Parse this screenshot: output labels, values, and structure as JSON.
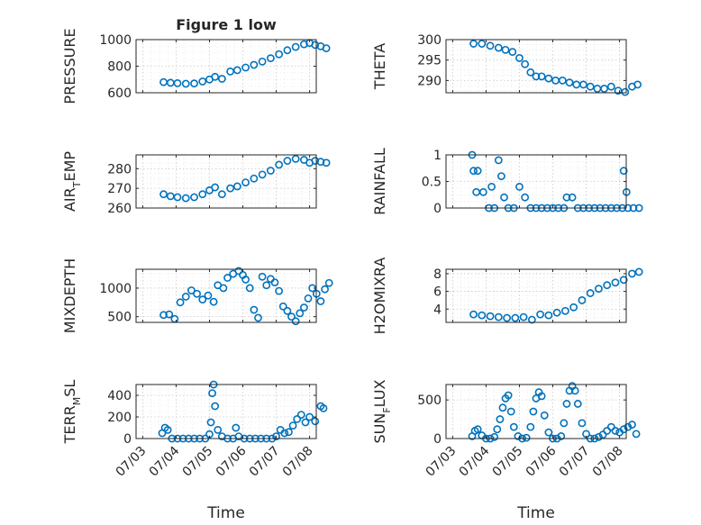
{
  "figure": {
    "title": "Figure 1 low",
    "xlabel": "Time"
  },
  "colors": {
    "marker": "#0072bd",
    "axis": "#262626",
    "grid": "#c9c9c9"
  },
  "chart_data": [
    {
      "id": "pressure",
      "type": "scatter",
      "title": "Figure 1 low",
      "ylabel": "PRESSURE",
      "ylabel_sub": "",
      "ylabel_tail": "",
      "xlabel": "",
      "xlim": [
        "07/03",
        "07/08"
      ],
      "ylim": [
        600,
        1000
      ],
      "yticks": [
        600,
        800,
        1000
      ],
      "xticks": [],
      "grid": true,
      "x": [
        "07/03 15:00",
        "07/03 20:00",
        "07/04 01:00",
        "07/04 07:00",
        "07/04 13:00",
        "07/04 19:00",
        "07/05 00:00",
        "07/05 04:00",
        "07/05 09:00",
        "07/05 15:00",
        "07/05 20:00",
        "07/06 02:00",
        "07/06 08:00",
        "07/06 14:00",
        "07/06 20:00",
        "07/07 02:00",
        "07/07 08:00",
        "07/07 14:00",
        "07/07 20:00",
        "07/08 00:00",
        "07/08 04:00",
        "07/08 08:00",
        "07/08 12:00"
      ],
      "y": [
        680,
        675,
        672,
        668,
        670,
        685,
        700,
        720,
        705,
        760,
        770,
        790,
        810,
        835,
        860,
        890,
        920,
        945,
        965,
        975,
        960,
        950,
        935
      ]
    },
    {
      "id": "theta",
      "type": "scatter",
      "title": "",
      "ylabel": "THETA",
      "ylabel_sub": "",
      "ylabel_tail": "",
      "xlabel": "",
      "xlim": [
        "07/03",
        "07/08"
      ],
      "ylim": [
        287,
        300
      ],
      "yticks": [
        290,
        295,
        300
      ],
      "xticks": [],
      "grid": true,
      "x": [
        "07/03 15:00",
        "07/03 21:00",
        "07/04 03:00",
        "07/04 09:00",
        "07/04 14:00",
        "07/04 19:00",
        "07/05 00:00",
        "07/05 04:00",
        "07/05 08:00",
        "07/05 12:00",
        "07/05 16:00",
        "07/05 21:00",
        "07/06 02:00",
        "07/06 07:00",
        "07/06 12:00",
        "07/06 17:00",
        "07/06 22:00",
        "07/07 03:00",
        "07/07 08:00",
        "07/07 13:00",
        "07/07 18:00",
        "07/07 23:00",
        "07/08 04:00",
        "07/08 09:00",
        "07/08 13:00"
      ],
      "y": [
        299,
        299,
        298.5,
        298,
        297.5,
        297,
        295.5,
        294,
        292,
        291,
        291,
        290.5,
        290,
        290,
        289.5,
        289,
        289,
        288.5,
        288,
        288,
        288.5,
        287.5,
        287.2,
        288.5,
        289
      ]
    },
    {
      "id": "air_temp",
      "type": "scatter",
      "title": "",
      "ylabel": "AIR",
      "ylabel_sub": "T",
      "ylabel_tail": "EMP",
      "xlabel": "",
      "xlim": [
        "07/03",
        "07/08"
      ],
      "ylim": [
        260,
        287
      ],
      "yticks": [
        260,
        270,
        280
      ],
      "xticks": [],
      "grid": true,
      "x": [
        "07/03 15:00",
        "07/03 20:00",
        "07/04 01:00",
        "07/04 07:00",
        "07/04 13:00",
        "07/04 19:00",
        "07/05 00:00",
        "07/05 04:00",
        "07/05 09:00",
        "07/05 15:00",
        "07/05 20:00",
        "07/06 02:00",
        "07/06 08:00",
        "07/06 14:00",
        "07/06 20:00",
        "07/07 02:00",
        "07/07 08:00",
        "07/07 14:00",
        "07/07 20:00",
        "07/08 00:00",
        "07/08 04:00",
        "07/08 08:00",
        "07/08 12:00"
      ],
      "y": [
        267,
        266,
        265.5,
        265,
        265.5,
        267,
        269,
        270.5,
        267,
        270,
        271,
        273,
        275,
        277,
        279,
        282,
        284,
        285,
        284.5,
        283,
        284,
        283.5,
        283
      ]
    },
    {
      "id": "rainfall",
      "type": "scatter",
      "title": "",
      "ylabel": "RAINFALL",
      "ylabel_sub": "",
      "ylabel_tail": "",
      "xlabel": "",
      "xlim": [
        "07/03",
        "07/08"
      ],
      "ylim": [
        0,
        1
      ],
      "yticks": [
        0,
        0.5,
        1
      ],
      "xticks": [],
      "grid": true,
      "x": [
        "07/03 14:00",
        "07/03 15:00",
        "07/03 17:00",
        "07/03 18:00",
        "07/03 22:00",
        "07/04 02:00",
        "07/04 04:00",
        "07/04 06:00",
        "07/04 09:00",
        "07/04 11:00",
        "07/04 13:00",
        "07/04 16:00",
        "07/04 20:00",
        "07/05 00:00",
        "07/05 04:00",
        "07/05 08:00",
        "07/05 12:00",
        "07/05 16:00",
        "07/05 20:00",
        "07/06 00:00",
        "07/06 04:00",
        "07/06 08:00",
        "07/06 10:00",
        "07/06 14:00",
        "07/06 18:00",
        "07/06 22:00",
        "07/07 02:00",
        "07/07 06:00",
        "07/07 10:00",
        "07/07 14:00",
        "07/07 18:00",
        "07/07 22:00",
        "07/08 02:00",
        "07/08 03:00",
        "07/08 05:00",
        "07/08 06:00",
        "07/08 10:00",
        "07/08 14:00"
      ],
      "y": [
        1,
        0.7,
        0.3,
        0.7,
        0.3,
        0,
        0.4,
        0,
        0.9,
        0.6,
        0.2,
        0,
        0,
        0.4,
        0.2,
        0,
        0,
        0,
        0,
        0,
        0,
        0,
        0.2,
        0.2,
        0,
        0,
        0,
        0,
        0,
        0,
        0,
        0,
        0,
        0.7,
        0.3,
        0,
        0,
        0
      ]
    },
    {
      "id": "mixdepth",
      "type": "scatter",
      "title": "",
      "ylabel": "MIXDEPTH",
      "ylabel_sub": "",
      "ylabel_tail": "",
      "xlabel": "",
      "xlim": [
        "07/03",
        "07/08"
      ],
      "ylim": [
        400,
        1330
      ],
      "yticks": [
        500,
        1000
      ],
      "xticks": [],
      "grid": true,
      "x": [
        "07/03 15:00",
        "07/03 19:00",
        "07/03 23:00",
        "07/04 03:00",
        "07/04 07:00",
        "07/04 11:00",
        "07/04 15:00",
        "07/04 19:00",
        "07/04 23:00",
        "07/05 03:00",
        "07/05 06:00",
        "07/05 10:00",
        "07/05 13:00",
        "07/05 17:00",
        "07/05 21:00",
        "07/06 00:00",
        "07/06 02:00",
        "07/06 05:00",
        "07/06 08:00",
        "07/06 11:00",
        "07/06 14:00",
        "07/06 17:00",
        "07/06 20:00",
        "07/06 23:00",
        "07/07 02:00",
        "07/07 05:00",
        "07/07 08:00",
        "07/07 11:00",
        "07/07 14:00",
        "07/07 17:00",
        "07/07 20:00",
        "07/07 23:00",
        "07/08 02:00",
        "07/08 05:00",
        "07/08 08:00",
        "07/08 11:00",
        "07/08 14:00"
      ],
      "y": [
        530,
        540,
        460,
        750,
        850,
        960,
        900,
        800,
        870,
        760,
        1050,
        1000,
        1180,
        1250,
        1300,
        1230,
        1150,
        1000,
        620,
        480,
        1200,
        1050,
        1160,
        1100,
        950,
        680,
        600,
        500,
        420,
        560,
        660,
        820,
        1000,
        900,
        770,
        980,
        1090
      ]
    },
    {
      "id": "h2omixra",
      "type": "scatter",
      "title": "",
      "ylabel": "H2OMIXRA",
      "ylabel_sub": "",
      "ylabel_tail": "",
      "xlabel": "",
      "xlim": [
        "07/03",
        "07/08"
      ],
      "ylim": [
        2.5,
        8.5
      ],
      "yticks": [
        4,
        6,
        8
      ],
      "xticks": [],
      "grid": true,
      "x": [
        "07/03 15:00",
        "07/03 21:00",
        "07/04 03:00",
        "07/04 09:00",
        "07/04 15:00",
        "07/04 21:00",
        "07/05 03:00",
        "07/05 09:00",
        "07/05 15:00",
        "07/05 21:00",
        "07/06 03:00",
        "07/06 09:00",
        "07/06 15:00",
        "07/06 21:00",
        "07/07 03:00",
        "07/07 09:00",
        "07/07 15:00",
        "07/07 21:00",
        "07/08 03:00",
        "07/08 09:00",
        "07/08 14:00"
      ],
      "y": [
        3.4,
        3.3,
        3.2,
        3.1,
        3.0,
        3.0,
        3.1,
        2.8,
        3.4,
        3.3,
        3.6,
        3.8,
        4.2,
        5.0,
        5.8,
        6.3,
        6.7,
        7.0,
        7.3,
        8.0,
        8.2
      ]
    },
    {
      "id": "terr_msl",
      "type": "scatter",
      "title": "",
      "ylabel": "TERR",
      "ylabel_sub": "M",
      "ylabel_tail": "SL",
      "xlabel": "Time",
      "xlim": [
        "07/03",
        "07/08"
      ],
      "ylim": [
        0,
        500
      ],
      "yticks": [
        0,
        200,
        400
      ],
      "xticks": [
        "07/03",
        "07/04",
        "07/05",
        "07/06",
        "07/07",
        "07/08"
      ],
      "grid": true,
      "x": [
        "07/03 14:00",
        "07/03 16:00",
        "07/03 18:00",
        "07/03 21:00",
        "07/04 01:00",
        "07/04 05:00",
        "07/04 09:00",
        "07/04 13:00",
        "07/04 17:00",
        "07/04 21:00",
        "07/05 00:00",
        "07/05 01:00",
        "07/05 02:00",
        "07/05 03:00",
        "07/05 04:00",
        "07/05 06:00",
        "07/05 09:00",
        "07/05 13:00",
        "07/05 17:00",
        "07/05 19:00",
        "07/05 21:00",
        "07/06 01:00",
        "07/06 05:00",
        "07/06 09:00",
        "07/06 13:00",
        "07/06 17:00",
        "07/06 21:00",
        "07/07 00:00",
        "07/07 03:00",
        "07/07 06:00",
        "07/07 09:00",
        "07/07 12:00",
        "07/07 15:00",
        "07/07 18:00",
        "07/07 21:00",
        "07/08 00:00",
        "07/08 04:00",
        "07/08 08:00",
        "07/08 10:00"
      ],
      "y": [
        50,
        100,
        80,
        0,
        0,
        0,
        0,
        0,
        0,
        0,
        40,
        150,
        420,
        500,
        300,
        80,
        20,
        0,
        0,
        100,
        20,
        0,
        0,
        0,
        0,
        0,
        0,
        20,
        80,
        50,
        60,
        120,
        180,
        220,
        150,
        200,
        160,
        300,
        280
      ]
    },
    {
      "id": "sun_flux",
      "type": "scatter",
      "title": "",
      "ylabel": "SUN",
      "ylabel_sub": "F",
      "ylabel_tail": "LUX",
      "xlabel": "Time",
      "xlim": [
        "07/03",
        "07/08"
      ],
      "ylim": [
        0,
        700
      ],
      "yticks": [
        0,
        500
      ],
      "xticks": [
        "07/03",
        "07/04",
        "07/05",
        "07/06",
        "07/07",
        "07/08"
      ],
      "grid": true,
      "x": [
        "07/03 14:00",
        "07/03 16:00",
        "07/03 18:00",
        "07/03 21:00",
        "07/04 00:00",
        "07/04 03:00",
        "07/04 06:00",
        "07/04 08:00",
        "07/04 10:00",
        "07/04 12:00",
        "07/04 14:00",
        "07/04 16:00",
        "07/04 18:00",
        "07/04 20:00",
        "07/04 23:00",
        "07/05 02:00",
        "07/05 05:00",
        "07/05 08:00",
        "07/05 10:00",
        "07/05 12:00",
        "07/05 14:00",
        "07/05 16:00",
        "07/05 18:00",
        "07/05 21:00",
        "07/06 00:00",
        "07/06 03:00",
        "07/06 06:00",
        "07/06 08:00",
        "07/06 10:00",
        "07/06 12:00",
        "07/06 14:00",
        "07/06 16:00",
        "07/06 18:00",
        "07/06 21:00",
        "07/07 00:00",
        "07/07 03:00",
        "07/07 06:00",
        "07/07 09:00",
        "07/07 12:00",
        "07/07 15:00",
        "07/07 18:00",
        "07/07 21:00",
        "07/08 00:00",
        "07/08 03:00",
        "07/08 06:00",
        "07/08 09:00",
        "07/08 12:00"
      ],
      "y": [
        30,
        100,
        120,
        40,
        0,
        0,
        20,
        120,
        250,
        400,
        520,
        560,
        350,
        150,
        30,
        0,
        10,
        150,
        350,
        520,
        600,
        550,
        300,
        80,
        0,
        0,
        30,
        200,
        450,
        620,
        680,
        620,
        450,
        200,
        60,
        0,
        0,
        20,
        50,
        100,
        150,
        100,
        80,
        120,
        150,
        180,
        60
      ]
    }
  ]
}
